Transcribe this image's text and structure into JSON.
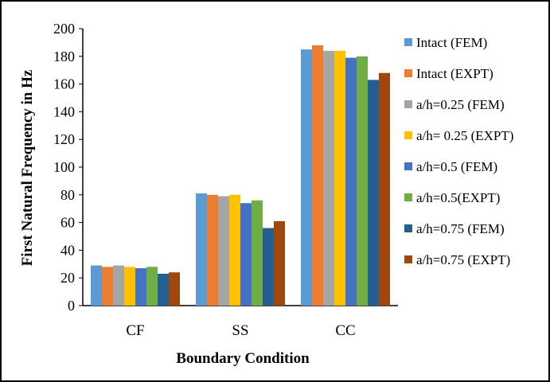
{
  "chart_data": {
    "type": "bar",
    "title": "",
    "xlabel": "Boundary Condition",
    "ylabel": "First Natural Frequency in Hz",
    "ylim": [
      0,
      200
    ],
    "yticks": [
      "0",
      "20",
      "40",
      "60",
      "80",
      "100",
      "120",
      "140",
      "160",
      "180",
      "200"
    ],
    "categories": [
      "CF",
      "SS",
      "CC"
    ],
    "grid": false,
    "legend_position": "right",
    "series": [
      {
        "name": "Intact (FEM)",
        "color": "#5B9BD5",
        "values": [
          29,
          81,
          185
        ]
      },
      {
        "name": "Intact (EXPT)",
        "color": "#ED7D31",
        "values": [
          28,
          80,
          188
        ]
      },
      {
        "name": "a/h=0.25 (FEM)",
        "color": "#A5A5A5",
        "values": [
          29,
          79,
          184
        ]
      },
      {
        "name": "a/h= 0.25 (EXPT)",
        "color": "#FFC000",
        "values": [
          28,
          80,
          184
        ]
      },
      {
        "name": "a/h=0.5 (FEM)",
        "color": "#4472C4",
        "values": [
          27,
          74,
          179
        ]
      },
      {
        "name": "a/h=0.5(EXPT)",
        "color": "#70AD47",
        "values": [
          28,
          76,
          180
        ]
      },
      {
        "name": "a/h=0.75 (FEM)",
        "color": "#255E91",
        "values": [
          23,
          56,
          163
        ]
      },
      {
        "name": "a/h=0.75 (EXPT)",
        "color": "#9E480E",
        "values": [
          24,
          61,
          168
        ]
      }
    ]
  }
}
